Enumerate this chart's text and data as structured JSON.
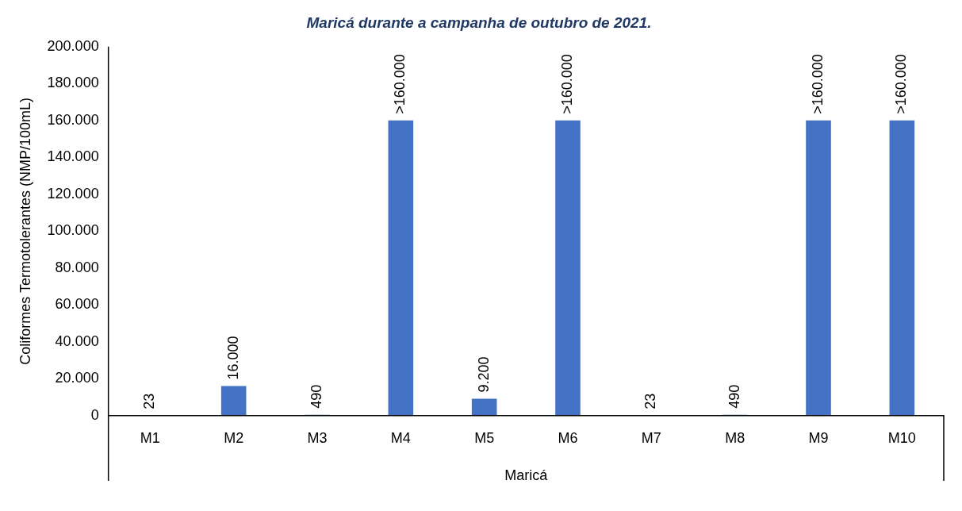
{
  "chart_data": {
    "type": "bar",
    "title": "Maricá durante a campanha de outubro de 2021.",
    "xlabel": "Maricá",
    "ylabel": "Coliformes Termotolerantes (NMP/100mL)",
    "categories": [
      "M1",
      "M2",
      "M3",
      "M4",
      "M5",
      "M6",
      "M7",
      "M8",
      "M9",
      "M10"
    ],
    "values": [
      23,
      16000,
      490,
      160000,
      9200,
      160000,
      23,
      490,
      160000,
      160000
    ],
    "value_labels": [
      "23",
      "16.000",
      "490",
      ">160.000",
      "9.200",
      ">160.000",
      "23",
      "490",
      ">160.000",
      ">160.000"
    ],
    "color": "#4472c4",
    "ylim": [
      0,
      200000
    ],
    "yticks": [
      {
        "value": 0,
        "label": "0"
      },
      {
        "value": 20000,
        "label": "20.000"
      },
      {
        "value": 40000,
        "label": "40.000"
      },
      {
        "value": 60000,
        "label": "60.000"
      },
      {
        "value": 80000,
        "label": "80.000"
      },
      {
        "value": 100000,
        "label": "100.000"
      },
      {
        "value": 120000,
        "label": "120.000"
      },
      {
        "value": 140000,
        "label": "140.000"
      },
      {
        "value": 160000,
        "label": "160.000"
      },
      {
        "value": 180000,
        "label": "180.000"
      },
      {
        "value": 200000,
        "label": "200.000"
      }
    ],
    "grid": false,
    "legend": false
  }
}
